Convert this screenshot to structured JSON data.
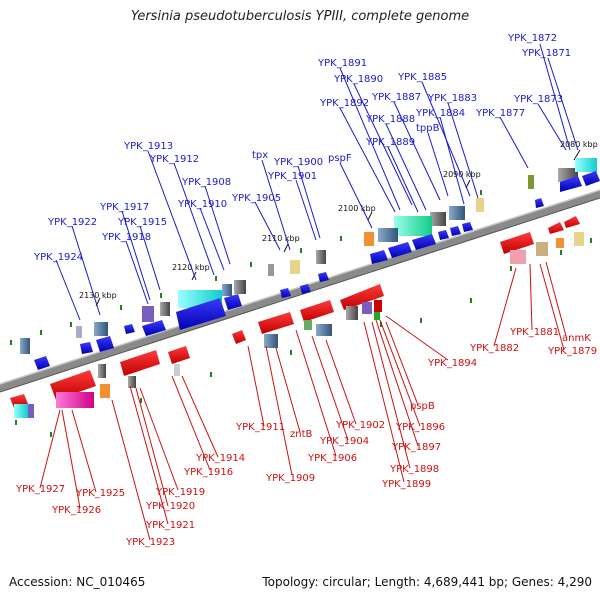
{
  "title": "Yersinia pseudotuberculosis YPIII, complete genome",
  "footer": {
    "accession": "Accession: NC_010465",
    "summary": "Topology: circular; Length: 4,689,441 bp; Genes: 4,290"
  },
  "colors": {
    "forward_label": "#1a1acc",
    "reverse_label": "#cc1111",
    "backbone": "#8a8a8a",
    "tick": "#2a7a2a"
  },
  "ticks": [
    "2080 kbp",
    "2090 kbp",
    "2100 kbp",
    "2110 kbp",
    "2120 kbp",
    "2130 kbp"
  ],
  "forward_genes": [
    "YPK_1872",
    "YPK_1871",
    "YPK_1891",
    "YPK_1890",
    "YPK_1885",
    "YPK_1892",
    "YPK_1887",
    "YPK_1883",
    "YPK_1873",
    "YPK_1888",
    "YPK_1884",
    "YPK_1877",
    "tppB",
    "YPK_1889",
    "YPK_1913",
    "YPK_1912",
    "tpx",
    "YPK_1900",
    "pspF",
    "YPK_1901",
    "YPK_1908",
    "YPK_1905",
    "YPK_1910",
    "YPK_1917",
    "YPK_1922",
    "YPK_1915",
    "YPK_1918",
    "YPK_1924"
  ],
  "reverse_genes": [
    "YPK_1894",
    "YPK_1882",
    "YPK_1881",
    "anmK",
    "YPK_1879",
    "pspB",
    "YPK_1896",
    "YPK_1897",
    "YPK_1898",
    "YPK_1899",
    "YPK_1902",
    "YPK_1904",
    "YPK_1906",
    "YPK_1911",
    "zntB",
    "YPK_1909",
    "YPK_1914",
    "YPK_1916",
    "YPK_1927",
    "YPK_1925",
    "YPK_1926",
    "YPK_1919",
    "YPK_1920",
    "YPK_1921",
    "YPK_1923"
  ]
}
